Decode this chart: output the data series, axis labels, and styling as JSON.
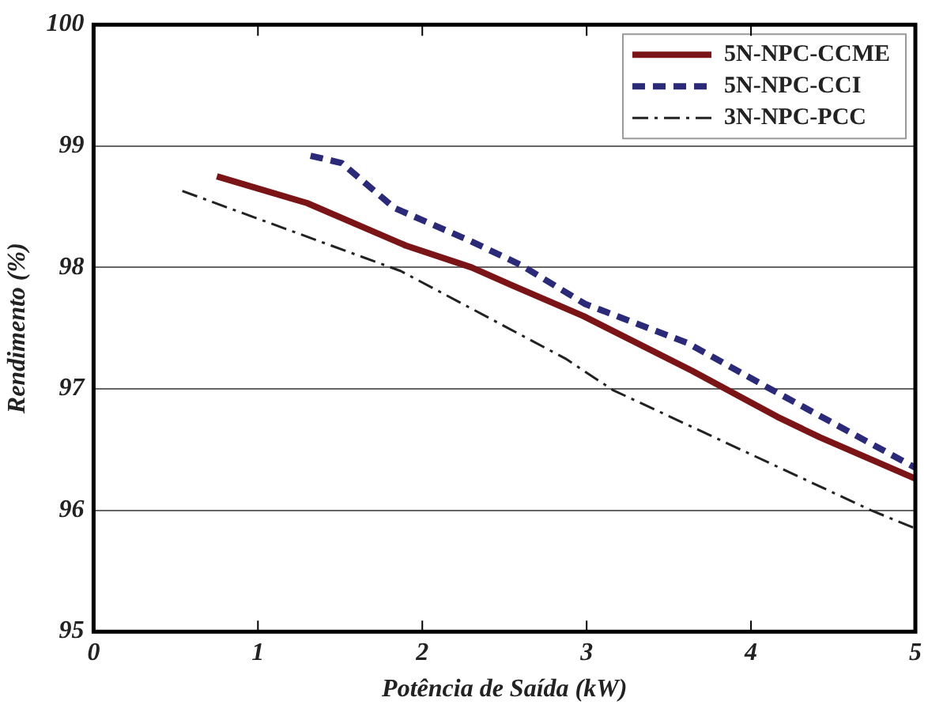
{
  "chart_data": {
    "type": "line",
    "xlabel": "Potência de Saída (kW)",
    "ylabel": "Rendimento (%)",
    "xlim": [
      0,
      5
    ],
    "xticks": [
      0,
      1,
      2,
      3,
      4,
      5
    ],
    "ylim": [
      95,
      100
    ],
    "yticks": [
      95,
      96,
      97,
      98,
      99,
      100
    ],
    "grid": "y",
    "legend": "top right",
    "marker": "none",
    "series": [
      {
        "name": "5N-NPC-CCME",
        "color": "#7a1416",
        "line_style": "solid",
        "x": [
          0.75,
          1.3,
          1.9,
          2.3,
          2.55,
          2.98,
          3.64,
          4.16,
          4.42,
          5
        ],
        "values": [
          98.75,
          98.53,
          98.18,
          98.0,
          97.85,
          97.6,
          97.15,
          96.77,
          96.6,
          96.26
        ]
      },
      {
        "name": "5N-NPC-CCI",
        "color": "#2b2a78",
        "line_style": "dashed",
        "x": [
          1.32,
          1.51,
          1.83,
          2.29,
          2.6,
          2.99,
          3.61,
          4.13,
          5
        ],
        "values": [
          98.92,
          98.86,
          98.49,
          98.22,
          98.02,
          97.7,
          97.38,
          96.99,
          96.35
        ]
      },
      {
        "name": "3N-NPC-PCC",
        "color": "#222222",
        "line_style": "dashdot",
        "x": [
          0.54,
          1.87,
          2.87,
          3.16,
          4.73,
          5
        ],
        "values": [
          98.63,
          97.97,
          97.25,
          96.99,
          96.0,
          95.85
        ]
      }
    ]
  }
}
